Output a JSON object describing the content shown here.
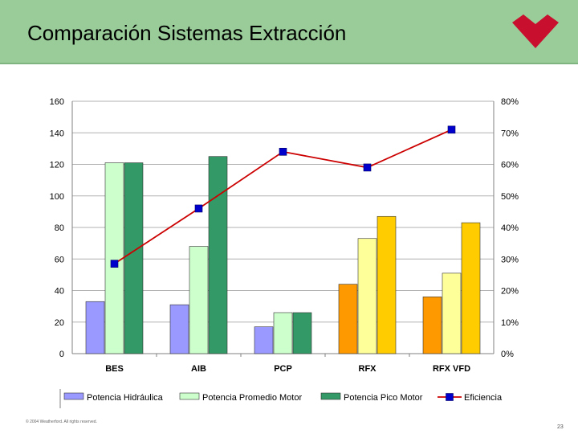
{
  "slide": {
    "title": "Comparación Sistemas Extracción",
    "footer": "© 2004 Weatherford.  All rights reserved.",
    "page_number": "23",
    "header_color": "#99cc99",
    "logo_color": "#c8102e"
  },
  "chart_data": {
    "type": "bar",
    "title": "Comparación Sistemas Extracción",
    "categories": [
      "BES",
      "AIB",
      "PCP",
      "RFX",
      "RFX VFD"
    ],
    "series": [
      {
        "name": "Potencia Hidráulica",
        "type": "bar",
        "axis": "left",
        "values": [
          33,
          31,
          17,
          44,
          36
        ],
        "colors": [
          "#9999ff",
          "#9999ff",
          "#9999ff",
          "#ff9900",
          "#ff9900"
        ],
        "legend_color": "#9999ff"
      },
      {
        "name": "Potencia Promedio Motor",
        "type": "bar",
        "axis": "left",
        "values": [
          121,
          68,
          26,
          73,
          51
        ],
        "colors": [
          "#ccffcc",
          "#ccffcc",
          "#ccffcc",
          "#ffff99",
          "#ffff99"
        ],
        "legend_color": "#ccffcc"
      },
      {
        "name": "Potencia Pico Motor",
        "type": "bar",
        "axis": "left",
        "values": [
          121,
          125,
          26,
          87,
          83
        ],
        "colors": [
          "#339966",
          "#339966",
          "#339966",
          "#ffcc00",
          "#ffcc00"
        ],
        "legend_color": "#339966"
      },
      {
        "name": "Eficiencia",
        "type": "line",
        "axis": "right",
        "values": [
          28.5,
          46,
          64,
          59,
          71
        ],
        "line_color": "#cc0000",
        "marker_color": "#0000cc"
      }
    ],
    "y_left": {
      "range": [
        0,
        160
      ],
      "ticks": [
        "0",
        "20",
        "40",
        "60",
        "80",
        "100",
        "120",
        "140",
        "160"
      ]
    },
    "y_right": {
      "range": [
        0,
        80
      ],
      "unit": "%",
      "ticks": [
        "0%",
        "10%",
        "20%",
        "30%",
        "40%",
        "50%",
        "60%",
        "70%",
        "80%"
      ]
    },
    "grid": true,
    "legend_position": "bottom"
  }
}
